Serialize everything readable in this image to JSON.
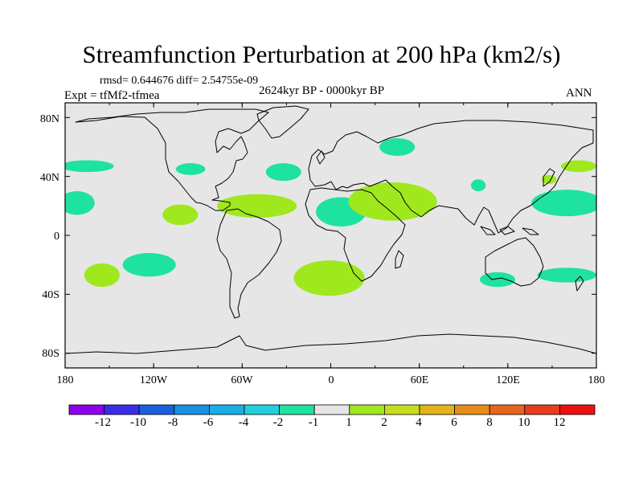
{
  "chart_data": {
    "type": "filled contour map",
    "title": "Streamfunction Perturbation at 200 hPa (km2/s)",
    "stats_line": "rmsd= 0.644676 diff= 2.54755e-09",
    "experiment": "Expt = tfMf2-tfmea",
    "period": "2624kyr BP - 0000kyr BP",
    "season": "ANN",
    "x_ticks": [
      "180",
      "120W",
      "60W",
      "0",
      "60E",
      "120E",
      "180"
    ],
    "y_ticks": [
      "80N",
      "40N",
      "0",
      "40S",
      "80S"
    ],
    "xlim": [
      -180,
      180
    ],
    "ylim": [
      -90,
      90
    ],
    "colorbar": {
      "levels": [
        "-12",
        "-10",
        "-8",
        "-6",
        "-4",
        "-2",
        "-1",
        "1",
        "2",
        "4",
        "6",
        "8",
        "10",
        "12"
      ],
      "colors": [
        "#8d00e8",
        "#3b2de6",
        "#1a5fdc",
        "#1b8ee3",
        "#1aaee6",
        "#23cfdb",
        "#1ee2a0",
        "#e6e6e6",
        "#a0e81e",
        "#c8dc1e",
        "#e0b41a",
        "#e68c1a",
        "#e6641e",
        "#e83c1e",
        "#ee1010"
      ]
    },
    "anomaly_regions": [
      {
        "lon": -165,
        "lat": 47,
        "rlon": 18,
        "rlat": 4,
        "level": "-2 to -1"
      },
      {
        "lon": -172,
        "lat": 22,
        "rlon": 12,
        "rlat": 8,
        "level": "-2 to -1"
      },
      {
        "lon": -155,
        "lat": -27,
        "rlon": 12,
        "rlat": 8,
        "level": "1 to 2"
      },
      {
        "lon": -123,
        "lat": -20,
        "rlon": 18,
        "rlat": 8,
        "level": "-2 to -1"
      },
      {
        "lon": -95,
        "lat": 45,
        "rlon": 10,
        "rlat": 4,
        "level": "-2 to -1"
      },
      {
        "lon": -102,
        "lat": 14,
        "rlon": 12,
        "rlat": 7,
        "level": "1 to 2"
      },
      {
        "lon": -50,
        "lat": 20,
        "rlon": 27,
        "rlat": 8,
        "level": "1 to 2"
      },
      {
        "lon": -32,
        "lat": 43,
        "rlon": 12,
        "rlat": 6,
        "level": "-2 to -1"
      },
      {
        "lon": 7,
        "lat": 16,
        "rlon": 17,
        "rlat": 10,
        "level": "-2 to -1"
      },
      {
        "lon": -1,
        "lat": -29,
        "rlon": 24,
        "rlat": 12,
        "level": "1 to 2"
      },
      {
        "lon": 42,
        "lat": 23,
        "rlon": 30,
        "rlat": 13,
        "level": "1 to 2"
      },
      {
        "lon": 45,
        "lat": 60,
        "rlon": 12,
        "rlat": 6,
        "level": "-2 to -1"
      },
      {
        "lon": 100,
        "lat": 34,
        "rlon": 5,
        "rlat": 4,
        "level": "-2 to -1"
      },
      {
        "lon": 148,
        "lat": 38,
        "rlon": 5,
        "rlat": 3,
        "level": "1 to 2"
      },
      {
        "lon": 168,
        "lat": 47,
        "rlon": 12,
        "rlat": 4,
        "level": "1 to 2"
      },
      {
        "lon": 160,
        "lat": 22,
        "rlon": 24,
        "rlat": 9,
        "level": "-2 to -1"
      },
      {
        "lon": 113,
        "lat": -30,
        "rlon": 12,
        "rlat": 5,
        "level": "-2 to -1"
      },
      {
        "lon": 160,
        "lat": -27,
        "rlon": 20,
        "rlat": 5,
        "level": "-2 to -1"
      }
    ]
  }
}
